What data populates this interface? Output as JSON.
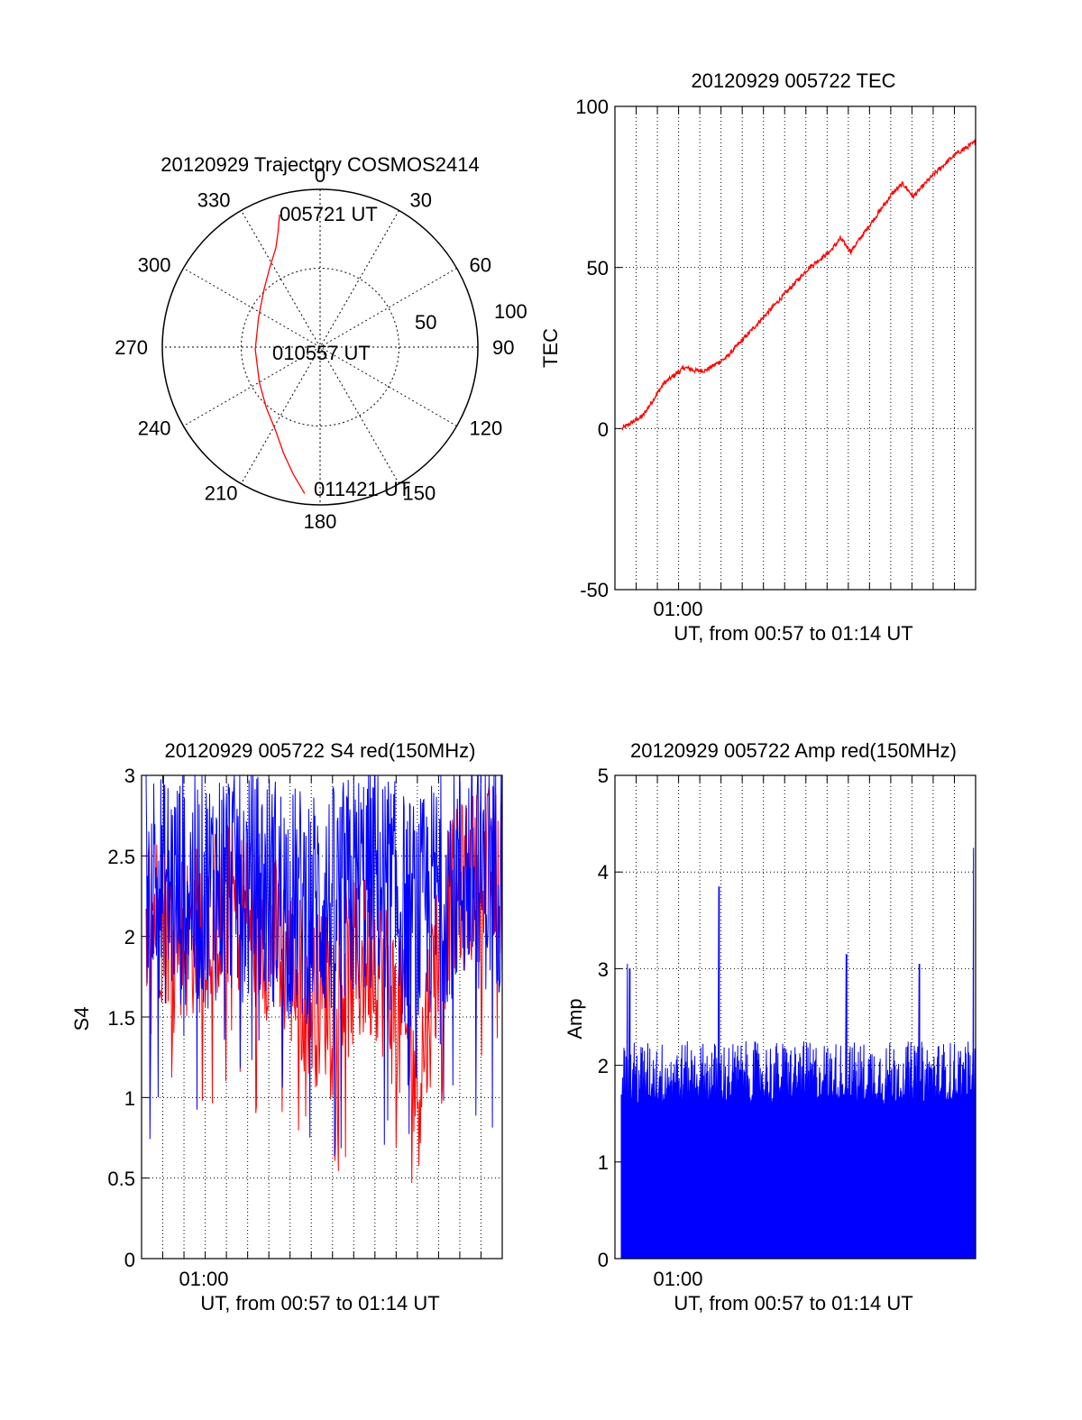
{
  "colors": {
    "red": "#ff0000",
    "blue": "#0000ff",
    "axis": "#000000",
    "grid": "#000000"
  },
  "chart_data": [
    {
      "id": "trajectory",
      "type": "polar",
      "title": "20120929 Trajectory COSMOS2414",
      "azimuth_labels": [
        "0",
        "30",
        "60",
        "90",
        "120",
        "150",
        "180",
        "210",
        "240",
        "270",
        "300",
        "330"
      ],
      "radial_labels": [
        "50",
        "100"
      ],
      "time_labels": {
        "start": "005721 UT",
        "mid": "010557 UT",
        "end": "011421 UT"
      },
      "trajectory": [
        {
          "az": 343,
          "el": 11
        },
        {
          "az": 340,
          "el": 20
        },
        {
          "az": 336,
          "el": 28
        },
        {
          "az": 328,
          "el": 36
        },
        {
          "az": 316,
          "el": 44
        },
        {
          "az": 296,
          "el": 51
        },
        {
          "az": 268,
          "el": 53
        },
        {
          "az": 240,
          "el": 50
        },
        {
          "az": 222,
          "el": 44
        },
        {
          "az": 208,
          "el": 36
        },
        {
          "az": 199,
          "el": 26
        },
        {
          "az": 192,
          "el": 16
        },
        {
          "az": 186,
          "el": 6
        }
      ],
      "series_color": "red"
    },
    {
      "id": "tec",
      "type": "line",
      "title": "20120929 005722 TEC",
      "ylabel": "TEC",
      "xlabel": "UT, from 00:57 to 01:14 UT",
      "xtick_label": "01:00",
      "ylim": [
        -50,
        100
      ],
      "yticks": [
        "-50",
        "0",
        "50",
        "100"
      ],
      "grid": true,
      "series_color": "red",
      "x_minutes": [
        0,
        1,
        2,
        3,
        3.5,
        4,
        5,
        6,
        7,
        8,
        9,
        10,
        10.5,
        11,
        12,
        13,
        13.5,
        14,
        15,
        16,
        17
      ],
      "values": [
        0,
        4,
        14,
        19,
        18,
        18,
        22,
        29,
        36,
        43,
        50,
        55,
        59,
        55,
        64,
        73,
        76,
        72,
        79,
        85,
        89
      ]
    },
    {
      "id": "s4",
      "type": "line",
      "title": "20120929 005722 S4 red(150MHz)",
      "ylabel": "S4",
      "xlabel": "UT, from 00:57 to 01:14 UT",
      "xtick_label": "01:00",
      "ylim": [
        0,
        3
      ],
      "yticks": [
        "0",
        "0.5",
        "1",
        "1.5",
        "2",
        "2.5",
        "3"
      ],
      "grid": true,
      "series": [
        {
          "color": "red",
          "mean": [
            2.2,
            2.1,
            2.0,
            2.1,
            2.2,
            2.1,
            2.0,
            1.8,
            1.6,
            1.7,
            1.8,
            1.9,
            1.5,
            1.1,
            2.0,
            2.3,
            2.4,
            2.4
          ],
          "spread": 0.55
        },
        {
          "color": "blue",
          "mean": [
            2.4,
            2.3,
            2.3,
            2.3,
            2.4,
            2.3,
            2.3,
            2.2,
            2.2,
            2.2,
            2.3,
            2.4,
            2.2,
            2.1,
            2.3,
            2.4,
            2.4,
            2.4
          ],
          "spread": 0.75
        }
      ],
      "x_minutes_range": [
        0,
        17
      ]
    },
    {
      "id": "amp",
      "type": "area",
      "title": "20120929 005722 Amp red(150MHz)",
      "ylabel": "Amp",
      "xlabel": "UT, from 00:57 to 01:14 UT",
      "xtick_label": "01:00",
      "ylim": [
        0,
        5
      ],
      "yticks": [
        "0",
        "1",
        "2",
        "3",
        "4",
        "5"
      ],
      "grid": true,
      "series_color": "blue",
      "base_level": 1.9,
      "spikes": [
        {
          "x_minute": 0.3,
          "value": 3.05
        },
        {
          "x_minute": 0.4,
          "value": 3.0
        },
        {
          "x_minute": 4.7,
          "value": 3.85
        },
        {
          "x_minute": 10.8,
          "value": 3.15
        },
        {
          "x_minute": 14.3,
          "value": 3.05
        },
        {
          "x_minute": 16.9,
          "value": 4.25
        }
      ],
      "x_minutes_range": [
        0,
        17
      ]
    }
  ]
}
